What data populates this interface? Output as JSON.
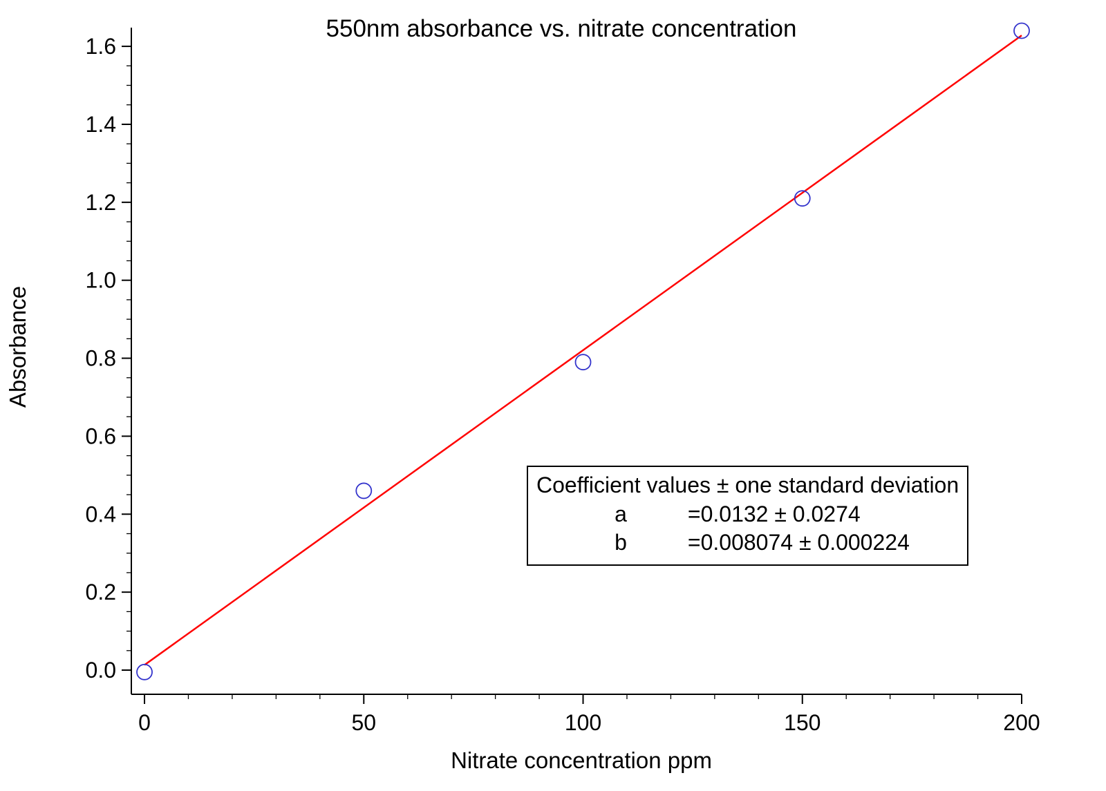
{
  "chart_data": {
    "type": "scatter",
    "title": "550nm absorbance vs. nitrate concentration",
    "xlabel": "Nitrate concentration ppm",
    "ylabel": "Absorbance",
    "x": [
      0,
      50,
      100,
      150,
      200
    ],
    "y": [
      -0.005,
      0.46,
      0.79,
      1.21,
      1.64
    ],
    "fit": {
      "type": "linear",
      "a": 0.0132,
      "b": 0.008074,
      "x_range": [
        0,
        200
      ]
    },
    "xlim": [
      0,
      200
    ],
    "ylim": [
      0,
      1.6
    ],
    "x_ticks": {
      "major": [
        0,
        50,
        100,
        150,
        200
      ],
      "minor_step": 10,
      "major_every": 5
    },
    "y_ticks": {
      "major_step": 0.2,
      "minor_step": 0.05,
      "decimals": 1
    },
    "grid": false,
    "colors": {
      "line": "#ff0000",
      "marker": "#3333cc",
      "axis": "#000000",
      "background": "#ffffff"
    },
    "legend": {
      "position": "inside-right",
      "header": "Coefficient values ± one standard deviation",
      "rows": [
        {
          "name": "a",
          "value": "=0.0132 ± 0.0274"
        },
        {
          "name": "b",
          "value": "=0.008074 ± 0.000224"
        }
      ]
    }
  }
}
